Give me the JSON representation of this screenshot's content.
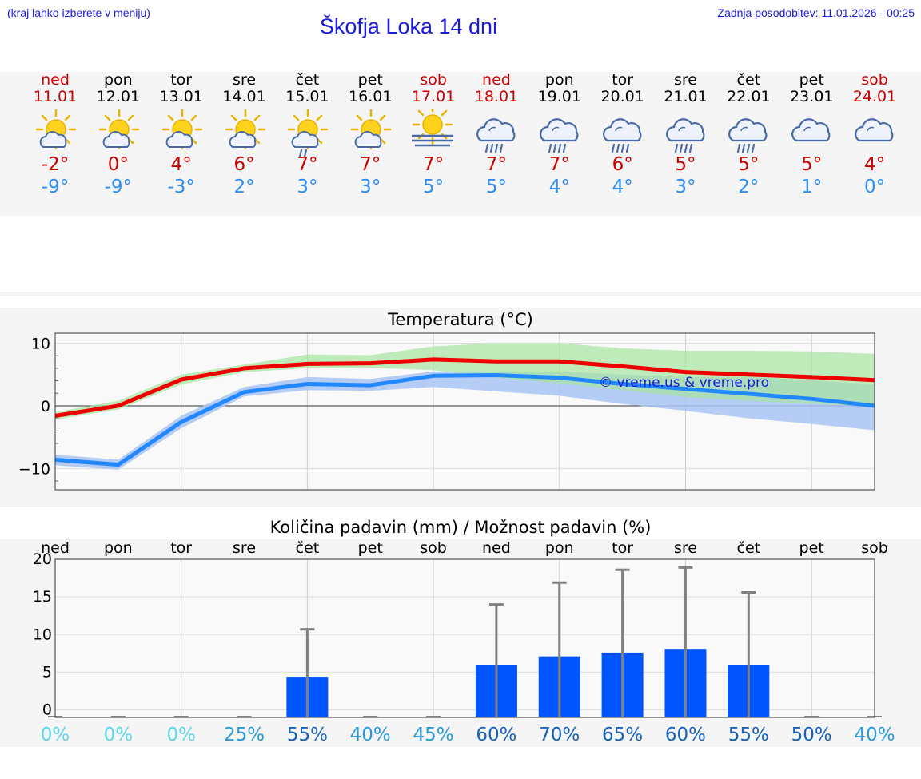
{
  "header": {
    "hint": "(kraj lahko izberete v meniju)",
    "title": "Škofja Loka 14 dni",
    "updated": "Zadnja posodobitev: 11.01.2026 - 00:25"
  },
  "colors": {
    "title_blue": "#1a1adc",
    "weekend_red": "#cc0000",
    "tmax_red": "#cc0000",
    "tmin_blue": "#2c8df4",
    "max_line": "#ee0000",
    "min_line": "#2288ff",
    "max_band": "#a6e4a0",
    "min_band": "#a9c4f3",
    "bar_blue": "#0055ff"
  },
  "days": [
    {
      "name": "ned",
      "date": "11.01",
      "weekend": true,
      "icon": "sun-cloud-icon",
      "tmax": "-2°",
      "tmin": "-9°"
    },
    {
      "name": "pon",
      "date": "12.01",
      "weekend": false,
      "icon": "sun-cloud-icon",
      "tmax": "0°",
      "tmin": "-9°"
    },
    {
      "name": "tor",
      "date": "13.01",
      "weekend": false,
      "icon": "sun-cloud-icon",
      "tmax": "4°",
      "tmin": "-3°"
    },
    {
      "name": "sre",
      "date": "14.01",
      "weekend": false,
      "icon": "sun-cloud-icon",
      "tmax": "6°",
      "tmin": "2°"
    },
    {
      "name": "čet",
      "date": "15.01",
      "weekend": false,
      "icon": "sun-cloud-rain-icon",
      "tmax": "7°",
      "tmin": "3°"
    },
    {
      "name": "pet",
      "date": "16.01",
      "weekend": false,
      "icon": "sun-cloud-icon",
      "tmax": "7°",
      "tmin": "3°"
    },
    {
      "name": "sob",
      "date": "17.01",
      "weekend": true,
      "icon": "sun-fog-icon",
      "tmax": "7°",
      "tmin": "5°"
    },
    {
      "name": "ned",
      "date": "18.01",
      "weekend": true,
      "icon": "cloud-rain-icon",
      "tmax": "7°",
      "tmin": "5°"
    },
    {
      "name": "pon",
      "date": "19.01",
      "weekend": false,
      "icon": "cloud-rain-icon",
      "tmax": "7°",
      "tmin": "4°"
    },
    {
      "name": "tor",
      "date": "20.01",
      "weekend": false,
      "icon": "cloud-rain-icon",
      "tmax": "6°",
      "tmin": "4°"
    },
    {
      "name": "sre",
      "date": "21.01",
      "weekend": false,
      "icon": "cloud-rain-icon",
      "tmax": "5°",
      "tmin": "3°"
    },
    {
      "name": "čet",
      "date": "22.01",
      "weekend": false,
      "icon": "cloud-rain-icon",
      "tmax": "5°",
      "tmin": "2°"
    },
    {
      "name": "pet",
      "date": "23.01",
      "weekend": false,
      "icon": "cloud-icon",
      "tmax": "5°",
      "tmin": "1°"
    },
    {
      "name": "sob",
      "date": "24.01",
      "weekend": true,
      "icon": "cloud-icon",
      "tmax": "4°",
      "tmin": "0°"
    }
  ],
  "chart_data": [
    {
      "type": "line",
      "title": "Temperatura (°C)",
      "xlabel": "",
      "ylabel": "°C",
      "ylim": [
        -13.4,
        11.6
      ],
      "yticks": [
        10,
        0,
        -10
      ],
      "grid": true,
      "x": [
        0,
        1,
        2,
        3,
        4,
        5,
        6,
        7,
        8,
        9,
        10,
        11,
        12,
        13
      ],
      "series": [
        {
          "name": "max",
          "values": [
            -1.6,
            0,
            4.2,
            6.0,
            6.7,
            6.8,
            7.4,
            7.1,
            7.1,
            6.3,
            5.4,
            5.0,
            4.6,
            4.1
          ],
          "band_low": [
            -2.2,
            -0.6,
            3.4,
            5.4,
            6.0,
            6.1,
            5.7,
            4.5,
            3.6,
            2.5,
            1.4,
            0.8,
            0.3,
            0.0
          ],
          "band_high": [
            -1.0,
            0.8,
            5.0,
            6.6,
            8.2,
            8.1,
            9.5,
            10.0,
            10.0,
            9.2,
            8.8,
            8.8,
            8.7,
            8.3
          ]
        },
        {
          "name": "min",
          "values": [
            -8.6,
            -9.4,
            -2.6,
            2.2,
            3.5,
            3.3,
            4.8,
            4.9,
            4.5,
            3.5,
            2.7,
            1.9,
            1.1,
            0.0
          ],
          "band_low": [
            -9.5,
            -10.2,
            -3.6,
            1.5,
            2.5,
            2.4,
            3.0,
            2.3,
            1.6,
            0.3,
            -0.8,
            -2.0,
            -2.9,
            -3.9
          ],
          "band_high": [
            -7.8,
            -8.6,
            -1.6,
            3.0,
            4.6,
            4.3,
            5.5,
            5.5,
            5.5,
            5.0,
            4.6,
            4.6,
            4.1,
            3.4
          ]
        }
      ],
      "annotation": "© vreme.us & vreme.pro"
    },
    {
      "type": "bar",
      "title": "Količina padavin (mm) / Možnost padavin (%)",
      "xlabel": "",
      "ylabel": "mm",
      "ylim": [
        -1,
        20
      ],
      "yticks": [
        0,
        5,
        10,
        15,
        20
      ],
      "grid": true,
      "categories": [
        "ned",
        "pon",
        "tor",
        "sre",
        "čet",
        "pet",
        "sob",
        "ned",
        "pon",
        "tor",
        "sre",
        "čet",
        "pet",
        "sob"
      ],
      "values": [
        0,
        0,
        0,
        0,
        4.4,
        0,
        0,
        6.0,
        7.1,
        7.6,
        8.1,
        6.0,
        0,
        0
      ],
      "error_high": [
        0,
        0,
        0,
        0.1,
        10.7,
        0,
        0,
        14.0,
        16.9,
        18.6,
        18.9,
        15.6,
        0,
        0
      ],
      "probability": [
        "0%",
        "0%",
        "0%",
        "25%",
        "55%",
        "40%",
        "45%",
        "60%",
        "70%",
        "65%",
        "60%",
        "55%",
        "50%",
        "40%"
      ]
    }
  ]
}
